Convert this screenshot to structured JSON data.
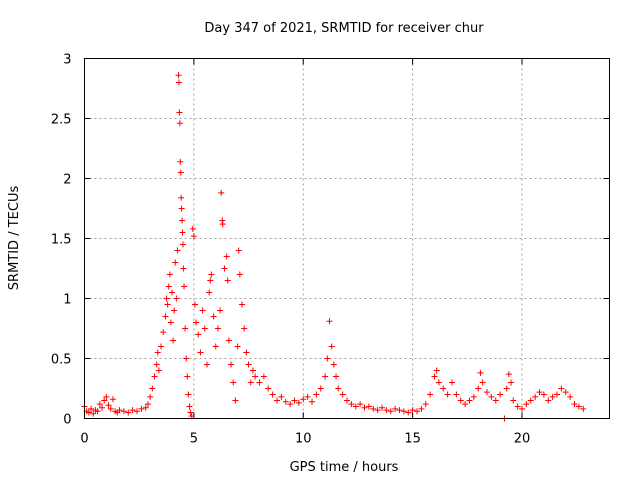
{
  "chart_data": {
    "type": "scatter",
    "title": "Day 347 of 2021, SRMTID for receiver chur",
    "xlabel": "GPS time / hours",
    "ylabel": "SRMTID / TECUs",
    "xlim": [
      0,
      24
    ],
    "ylim": [
      0,
      3
    ],
    "xticks": [
      0,
      5,
      10,
      15,
      20
    ],
    "yticks": [
      0,
      0.5,
      1,
      1.5,
      2,
      2.5,
      3
    ],
    "xtick_labels": [
      "0",
      "5",
      "10",
      "15",
      "20"
    ],
    "ytick_labels": [
      "0",
      "0.5",
      "1",
      "1.5",
      "2",
      "2.5",
      "3"
    ],
    "grid": true,
    "marker": "+",
    "color": "#ff0000",
    "series": [
      {
        "name": "SRMTID",
        "points": [
          [
            0.0,
            0.1
          ],
          [
            0.1,
            0.06
          ],
          [
            0.2,
            0.05
          ],
          [
            0.3,
            0.08
          ],
          [
            0.4,
            0.04
          ],
          [
            0.5,
            0.07
          ],
          [
            0.6,
            0.06
          ],
          [
            0.7,
            0.12
          ],
          [
            0.8,
            0.09
          ],
          [
            0.9,
            0.15
          ],
          [
            1.0,
            0.18
          ],
          [
            1.1,
            0.11
          ],
          [
            1.2,
            0.08
          ],
          [
            1.3,
            0.16
          ],
          [
            1.4,
            0.06
          ],
          [
            1.5,
            0.05
          ],
          [
            1.6,
            0.07
          ],
          [
            1.8,
            0.06
          ],
          [
            2.0,
            0.05
          ],
          [
            2.2,
            0.07
          ],
          [
            2.4,
            0.06
          ],
          [
            2.6,
            0.08
          ],
          [
            2.8,
            0.09
          ],
          [
            2.9,
            0.12
          ],
          [
            3.0,
            0.18
          ],
          [
            3.1,
            0.25
          ],
          [
            3.2,
            0.35
          ],
          [
            3.3,
            0.45
          ],
          [
            3.35,
            0.55
          ],
          [
            3.4,
            0.4
          ],
          [
            3.5,
            0.6
          ],
          [
            3.6,
            0.72
          ],
          [
            3.7,
            0.85
          ],
          [
            3.75,
            1.0
          ],
          [
            3.8,
            0.95
          ],
          [
            3.85,
            1.1
          ],
          [
            3.9,
            1.2
          ],
          [
            3.95,
            0.8
          ],
          [
            4.0,
            1.05
          ],
          [
            4.05,
            0.65
          ],
          [
            4.1,
            0.9
          ],
          [
            4.15,
            1.3
          ],
          [
            4.2,
            1.0
          ],
          [
            4.25,
            1.4
          ],
          [
            4.3,
            2.86
          ],
          [
            4.32,
            2.8
          ],
          [
            4.34,
            2.55
          ],
          [
            4.36,
            2.46
          ],
          [
            4.38,
            2.14
          ],
          [
            4.4,
            2.05
          ],
          [
            4.42,
            1.84
          ],
          [
            4.44,
            1.75
          ],
          [
            4.46,
            1.65
          ],
          [
            4.48,
            1.55
          ],
          [
            4.5,
            1.45
          ],
          [
            4.52,
            1.25
          ],
          [
            4.55,
            1.1
          ],
          [
            4.6,
            0.75
          ],
          [
            4.65,
            0.5
          ],
          [
            4.7,
            0.35
          ],
          [
            4.75,
            0.2
          ],
          [
            4.8,
            0.1
          ],
          [
            4.85,
            0.05
          ],
          [
            4.9,
            0.02
          ],
          [
            4.95,
            1.58
          ],
          [
            5.0,
            1.52
          ],
          [
            5.05,
            0.95
          ],
          [
            5.1,
            0.8
          ],
          [
            5.2,
            0.7
          ],
          [
            5.3,
            0.55
          ],
          [
            5.4,
            0.9
          ],
          [
            5.5,
            0.75
          ],
          [
            5.6,
            0.45
          ],
          [
            5.7,
            1.05
          ],
          [
            5.75,
            1.15
          ],
          [
            5.8,
            1.2
          ],
          [
            5.9,
            0.85
          ],
          [
            6.0,
            0.6
          ],
          [
            6.1,
            0.75
          ],
          [
            6.2,
            0.9
          ],
          [
            6.25,
            1.88
          ],
          [
            6.3,
            1.65
          ],
          [
            6.32,
            1.62
          ],
          [
            6.4,
            1.25
          ],
          [
            6.5,
            1.35
          ],
          [
            6.55,
            1.15
          ],
          [
            6.6,
            0.65
          ],
          [
            6.7,
            0.45
          ],
          [
            6.8,
            0.3
          ],
          [
            6.9,
            0.15
          ],
          [
            7.0,
            0.6
          ],
          [
            7.05,
            1.4
          ],
          [
            7.1,
            1.2
          ],
          [
            7.2,
            0.95
          ],
          [
            7.3,
            0.75
          ],
          [
            7.4,
            0.55
          ],
          [
            7.5,
            0.45
          ],
          [
            7.6,
            0.3
          ],
          [
            7.7,
            0.4
          ],
          [
            7.8,
            0.35
          ],
          [
            8.0,
            0.3
          ],
          [
            8.2,
            0.35
          ],
          [
            8.4,
            0.25
          ],
          [
            8.6,
            0.2
          ],
          [
            8.8,
            0.15
          ],
          [
            9.0,
            0.18
          ],
          [
            9.2,
            0.14
          ],
          [
            9.4,
            0.12
          ],
          [
            9.6,
            0.15
          ],
          [
            9.8,
            0.13
          ],
          [
            10.0,
            0.16
          ],
          [
            10.2,
            0.18
          ],
          [
            10.4,
            0.14
          ],
          [
            10.6,
            0.2
          ],
          [
            10.8,
            0.25
          ],
          [
            11.0,
            0.35
          ],
          [
            11.1,
            0.5
          ],
          [
            11.2,
            0.81
          ],
          [
            11.3,
            0.6
          ],
          [
            11.4,
            0.45
          ],
          [
            11.5,
            0.35
          ],
          [
            11.6,
            0.25
          ],
          [
            11.8,
            0.2
          ],
          [
            12.0,
            0.15
          ],
          [
            12.2,
            0.12
          ],
          [
            12.4,
            0.1
          ],
          [
            12.6,
            0.12
          ],
          [
            12.8,
            0.09
          ],
          [
            13.0,
            0.1
          ],
          [
            13.2,
            0.08
          ],
          [
            13.4,
            0.07
          ],
          [
            13.6,
            0.09
          ],
          [
            13.8,
            0.07
          ],
          [
            14.0,
            0.06
          ],
          [
            14.2,
            0.08
          ],
          [
            14.4,
            0.07
          ],
          [
            14.6,
            0.06
          ],
          [
            14.8,
            0.05
          ],
          [
            15.0,
            0.07
          ],
          [
            15.2,
            0.06
          ],
          [
            15.4,
            0.08
          ],
          [
            15.6,
            0.12
          ],
          [
            15.8,
            0.2
          ],
          [
            16.0,
            0.35
          ],
          [
            16.1,
            0.4
          ],
          [
            16.2,
            0.3
          ],
          [
            16.4,
            0.25
          ],
          [
            16.6,
            0.2
          ],
          [
            16.8,
            0.3
          ],
          [
            17.0,
            0.2
          ],
          [
            17.2,
            0.15
          ],
          [
            17.4,
            0.12
          ],
          [
            17.6,
            0.15
          ],
          [
            17.8,
            0.18
          ],
          [
            18.0,
            0.25
          ],
          [
            18.1,
            0.38
          ],
          [
            18.2,
            0.3
          ],
          [
            18.4,
            0.22
          ],
          [
            18.6,
            0.18
          ],
          [
            18.8,
            0.15
          ],
          [
            19.0,
            0.2
          ],
          [
            19.2,
            0.0
          ],
          [
            19.3,
            0.25
          ],
          [
            19.4,
            0.37
          ],
          [
            19.5,
            0.3
          ],
          [
            19.6,
            0.15
          ],
          [
            19.8,
            0.1
          ],
          [
            20.0,
            0.08
          ],
          [
            20.2,
            0.12
          ],
          [
            20.4,
            0.15
          ],
          [
            20.6,
            0.18
          ],
          [
            20.8,
            0.22
          ],
          [
            21.0,
            0.2
          ],
          [
            21.2,
            0.15
          ],
          [
            21.4,
            0.18
          ],
          [
            21.6,
            0.2
          ],
          [
            21.8,
            0.25
          ],
          [
            22.0,
            0.22
          ],
          [
            22.2,
            0.18
          ],
          [
            22.4,
            0.12
          ],
          [
            22.6,
            0.1
          ],
          [
            22.8,
            0.08
          ]
        ]
      }
    ]
  }
}
